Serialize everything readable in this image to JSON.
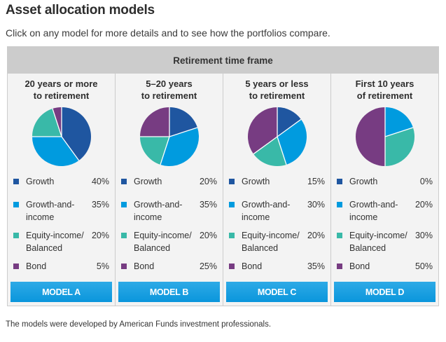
{
  "title": "Asset allocation models",
  "subtitle": "Click on any model for more details and to see how the portfolios compare.",
  "panel_header": "Retirement time frame",
  "footnote": "The models were developed by American Funds investment professionals.",
  "colors": {
    "Growth": "#1f56a0",
    "Growth-and-income": "#009bdf",
    "Equity-income/Balanced": "#39b9a8",
    "Bond": "#773c82"
  },
  "chart_data": [
    {
      "type": "pie",
      "title": "20 years or more to retirement",
      "button": "MODEL A",
      "categories": [
        "Growth",
        "Growth-and-income",
        "Equity-income/Balanced",
        "Bond"
      ],
      "values": [
        40,
        35,
        20,
        5
      ],
      "labels": [
        "40%",
        "35%",
        "20%",
        "5%"
      ]
    },
    {
      "type": "pie",
      "title": "5–20 years to retirement",
      "button": "MODEL B",
      "categories": [
        "Growth",
        "Growth-and-income",
        "Equity-income/Balanced",
        "Bond"
      ],
      "values": [
        20,
        35,
        20,
        25
      ],
      "labels": [
        "20%",
        "35%",
        "20%",
        "25%"
      ]
    },
    {
      "type": "pie",
      "title": "5 years or less to retirement",
      "button": "MODEL C",
      "categories": [
        "Growth",
        "Growth-and-income",
        "Equity-income/Balanced",
        "Bond"
      ],
      "values": [
        15,
        30,
        20,
        35
      ],
      "labels": [
        "15%",
        "30%",
        "20%",
        "35%"
      ]
    },
    {
      "type": "pie",
      "title": "First 10 years of retirement",
      "button": "MODEL D",
      "categories": [
        "Growth",
        "Growth-and-income",
        "Equity-income/Balanced",
        "Bond"
      ],
      "values": [
        0,
        20,
        30,
        50
      ],
      "labels": [
        "0%",
        "20%",
        "30%",
        "50%"
      ]
    }
  ],
  "columns": [
    {
      "title_line1": "20 years or more",
      "title_line2": "to retirement",
      "button": "MODEL A"
    },
    {
      "title_line1": "5–20 years",
      "title_line2": "to retirement",
      "button": "MODEL B"
    },
    {
      "title_line1": "5 years or less",
      "title_line2": "to retirement",
      "button": "MODEL C"
    },
    {
      "title_line1": "First 10 years",
      "title_line2": "of retirement",
      "button": "MODEL D"
    }
  ],
  "legend_labels": [
    {
      "line1": "Growth",
      "line2": ""
    },
    {
      "line1": "Growth-and-",
      "line2": "income"
    },
    {
      "line1": "Equity-income/",
      "line2": "Balanced"
    },
    {
      "line1": "Bond",
      "line2": ""
    }
  ]
}
